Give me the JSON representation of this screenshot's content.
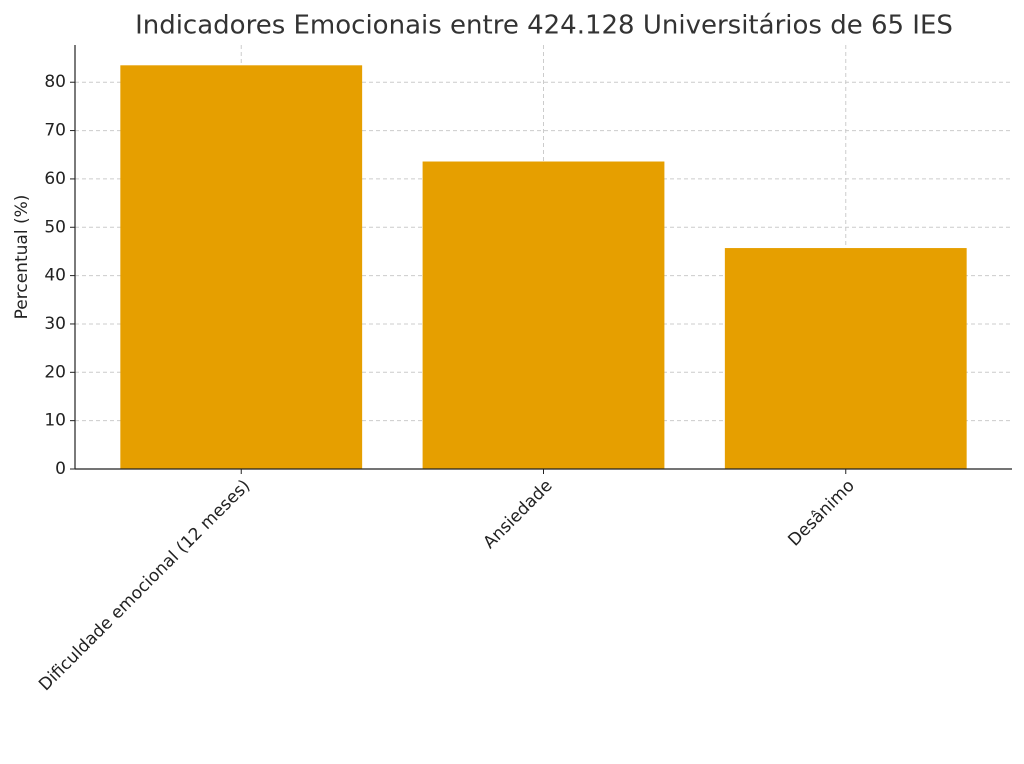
{
  "chart_data": {
    "type": "bar",
    "title": "Indicadores Emocionais entre 424.128 Universitários de 65 IES",
    "y_label": "Percentual (%)",
    "categories": [
      "Dificuldade emocional (12 meses)",
      "Ansiedade",
      "Desânimo"
    ],
    "values": [
      83.5,
      63.6,
      45.7
    ],
    "color": "#e69f00",
    "ylim": [
      0,
      87.7
    ],
    "yticks": [
      0,
      10,
      20,
      30,
      40,
      50,
      60,
      70,
      80
    ],
    "grid": true
  }
}
